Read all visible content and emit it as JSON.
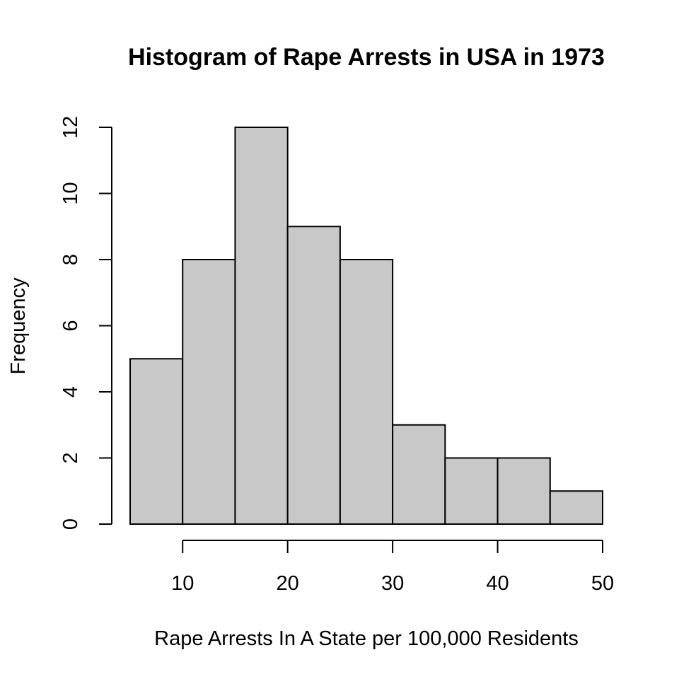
{
  "chart_data": {
    "type": "bar",
    "title": "Histogram of Rape Arrests in USA in 1973",
    "xlabel": "Rape Arrests In A State per 100,000 Residents",
    "ylabel": "Frequency",
    "bins": [
      {
        "x0": 5,
        "x1": 10,
        "count": 5
      },
      {
        "x0": 10,
        "x1": 15,
        "count": 8
      },
      {
        "x0": 15,
        "x1": 20,
        "count": 12
      },
      {
        "x0": 20,
        "x1": 25,
        "count": 9
      },
      {
        "x0": 25,
        "x1": 30,
        "count": 8
      },
      {
        "x0": 30,
        "x1": 35,
        "count": 3
      },
      {
        "x0": 35,
        "x1": 40,
        "count": 2
      },
      {
        "x0": 40,
        "x1": 45,
        "count": 2
      },
      {
        "x0": 45,
        "x1": 50,
        "count": 1
      }
    ],
    "xlim": [
      5,
      50
    ],
    "ylim": [
      0,
      12
    ],
    "xticks": [
      10,
      20,
      30,
      40,
      50
    ],
    "yticks": [
      0,
      2,
      4,
      6,
      8,
      10,
      12
    ],
    "bar_color": "#c8c8c8",
    "grid": false,
    "legend": "none"
  }
}
